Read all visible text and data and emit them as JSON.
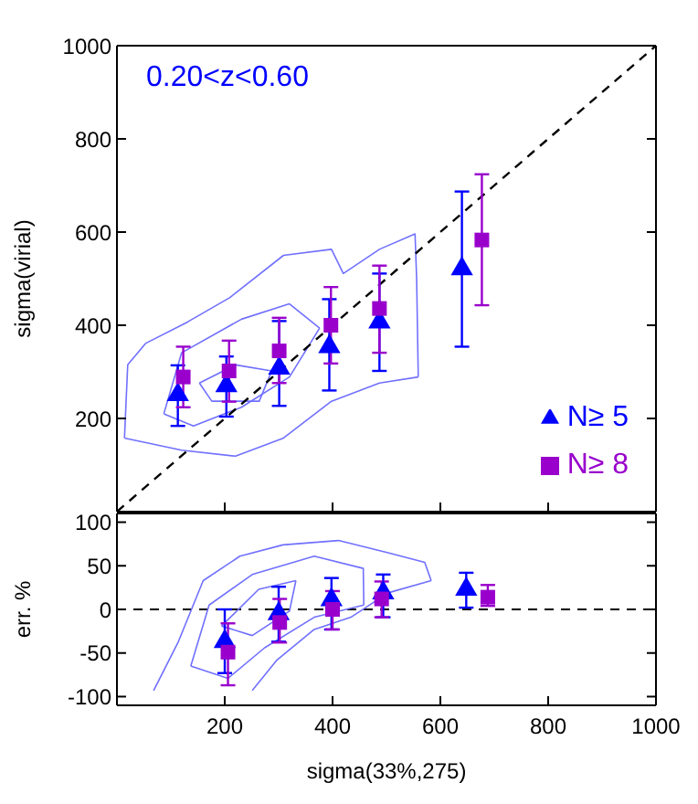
{
  "chart_data": [
    {
      "type": "scatter",
      "ylabel": "sigma(virial)",
      "annotations": [
        "0.20<z<0.60"
      ],
      "xlim": [
        0,
        1000
      ],
      "xticks": [
        200,
        400,
        600,
        800,
        1000
      ],
      "ylim": [
        0,
        1000
      ],
      "yticks": [
        200,
        400,
        600,
        800,
        1000
      ],
      "tick_labels": "y",
      "legend": "bottom right",
      "series": [
        {
          "type": "line",
          "color": "#7070ff",
          "x": [
            14,
            20,
            53,
            131,
            209,
            309,
            398,
            420,
            487,
            553,
            556,
            559
          ],
          "values": [
            158,
            315,
            361,
            407,
            459,
            550,
            563,
            511,
            563,
            596,
            500,
            289
          ]
        },
        {
          "type": "line",
          "color": "#7070ff",
          "x": [
            14,
            120,
            220,
            309,
            398,
            487,
            559
          ],
          "values": [
            158,
            132,
            119,
            158,
            237,
            276,
            289
          ]
        },
        {
          "type": "line",
          "color": "#7070ff",
          "x": [
            87,
            120,
            231,
            320,
            376
          ],
          "values": [
            210,
            341,
            413,
            446,
            394
          ]
        },
        {
          "type": "line",
          "color": "#7070ff",
          "x": [
            87,
            142,
            231,
            320,
            376
          ],
          "values": [
            210,
            184,
            224,
            289,
            394
          ]
        },
        {
          "type": "line",
          "color": "#7070ff",
          "x": [
            153,
            220,
            287
          ],
          "values": [
            276,
            315,
            302
          ]
        },
        {
          "type": "line",
          "color": "#7070ff",
          "x": [
            153,
            176,
            264,
            287
          ],
          "values": [
            276,
            237,
            237,
            302
          ]
        },
        {
          "type": "line",
          "color": "#000000",
          "line_style": "dashed",
          "x": [
            0,
            1000
          ],
          "values": [
            0,
            1000
          ]
        },
        {
          "name": "N≥ 5",
          "color": "#0000ff",
          "marker": "triangle",
          "x": [
            113,
            203,
            301,
            394,
            487,
            640
          ],
          "values": [
            251,
            270,
            308,
            354,
            407,
            521
          ],
          "errors": [
            [
              184,
              314
            ],
            [
              204,
              333
            ],
            [
              227,
              409
            ],
            [
              260,
              456
            ],
            [
              302,
              511
            ],
            [
              354,
              687
            ]
          ]
        },
        {
          "name": "N≥ 8",
          "color": "#9900cc",
          "marker": "square",
          "x": [
            123,
            208,
            301,
            397,
            487,
            677
          ],
          "values": [
            289,
            302,
            345,
            400,
            436,
            583
          ],
          "errors": [
            [
              224,
              354
            ],
            [
              236,
              367
            ],
            [
              276,
              416
            ],
            [
              318,
              482
            ],
            [
              341,
              528
            ],
            [
              443,
              724
            ]
          ]
        }
      ]
    },
    {
      "type": "scatter",
      "xlabel": "sigma(33%,275)",
      "ylabel": "err. %",
      "xlim": [
        0,
        1000
      ],
      "xticks": [
        200,
        400,
        600,
        800,
        1000
      ],
      "ylim": [
        -110,
        110
      ],
      "yticks": [
        -100,
        -50,
        0,
        50,
        100
      ],
      "ref_lines": [
        {
          "axis": "y",
          "value": 0,
          "color": "#000000",
          "line_style": "dashed"
        }
      ],
      "series": [
        {
          "type": "line",
          "color": "#7070ff",
          "x": [
            68,
            114,
            160,
            228,
            308,
            411,
            503,
            571,
            583
          ],
          "values": [
            -93,
            -37,
            33,
            61,
            74,
            79,
            65,
            54,
            33
          ]
        },
        {
          "type": "line",
          "color": "#7070ff",
          "x": [
            251,
            297,
            366,
            434,
            503,
            583
          ],
          "values": [
            -93,
            -58,
            -23,
            -9,
            19,
            33
          ]
        },
        {
          "type": "line",
          "color": "#7070ff",
          "x": [
            137,
            171,
            251,
            366,
            457,
            458
          ],
          "values": [
            -65,
            5,
            40,
            61,
            47,
            5
          ]
        },
        {
          "type": "line",
          "color": "#7070ff",
          "x": [
            137,
            206,
            274,
            366,
            458
          ],
          "values": [
            -65,
            -79,
            -44,
            -9,
            5
          ]
        },
        {
          "type": "line",
          "color": "#7070ff",
          "x": [
            194,
            263,
            332
          ],
          "values": [
            -19,
            23,
            33
          ]
        },
        {
          "type": "line",
          "color": "#7070ff",
          "x": [
            194,
            251,
            320,
            332
          ],
          "values": [
            -19,
            -30,
            -2,
            33
          ]
        },
        {
          "color": "#0000ff",
          "marker": "triangle",
          "x": [
            200,
            300,
            398,
            494,
            648
          ],
          "values": [
            -37,
            -5,
            11,
            19,
            23
          ],
          "errors": [
            [
              -73,
              0
            ],
            [
              -37,
              26
            ],
            [
              -23,
              36
            ],
            [
              -9,
              40
            ],
            [
              2,
              42
            ]
          ]
        },
        {
          "color": "#9900cc",
          "marker": "square",
          "x": [
            206,
            302,
            400,
            491,
            688
          ],
          "values": [
            -49,
            -15,
            0,
            12,
            14
          ],
          "errors": [
            [
              -87,
              -16
            ],
            [
              -38,
              12
            ],
            [
              -23,
              21
            ],
            [
              -9,
              32
            ],
            [
              4,
              28
            ]
          ]
        }
      ]
    }
  ]
}
